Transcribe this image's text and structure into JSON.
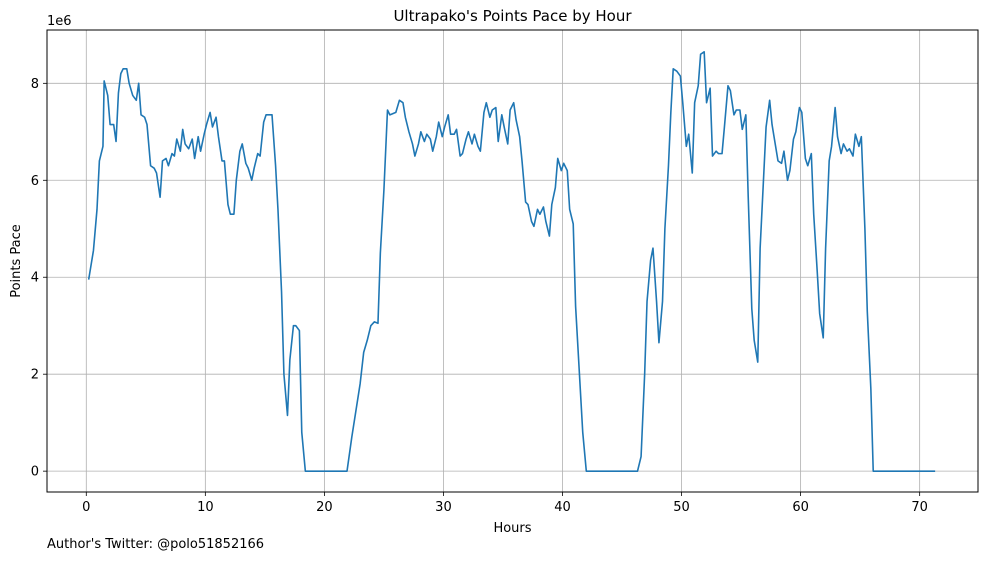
{
  "chart_data": {
    "type": "line",
    "title": "Ultrapako's Points Pace by Hour",
    "xlabel": "Hours",
    "ylabel": "Points Pace",
    "y_scale_label": "1e6",
    "xlim": [
      -3.3,
      74.9
    ],
    "ylim": [
      -0.43,
      9.1
    ],
    "x_ticks": [
      0,
      10,
      20,
      30,
      40,
      50,
      60,
      70
    ],
    "y_ticks": [
      0,
      2,
      4,
      6,
      8
    ],
    "grid": true,
    "legend": "none",
    "colors": {
      "line": "#1f77b4",
      "grid": "#b0b0b0",
      "axes": "#000000"
    },
    "series": [
      {
        "points": [
          [
            0.2,
            3.95
          ],
          [
            0.6,
            4.55
          ],
          [
            0.9,
            5.4
          ],
          [
            1.1,
            6.4
          ],
          [
            1.4,
            6.7
          ],
          [
            1.5,
            8.05
          ],
          [
            1.8,
            7.75
          ],
          [
            2.0,
            7.15
          ],
          [
            2.3,
            7.15
          ],
          [
            2.5,
            6.8
          ],
          [
            2.7,
            7.8
          ],
          [
            2.9,
            8.2
          ],
          [
            3.1,
            8.3
          ],
          [
            3.4,
            8.3
          ],
          [
            3.6,
            8.0
          ],
          [
            3.9,
            7.75
          ],
          [
            4.2,
            7.65
          ],
          [
            4.4,
            8.0
          ],
          [
            4.6,
            7.35
          ],
          [
            4.9,
            7.3
          ],
          [
            5.1,
            7.15
          ],
          [
            5.4,
            6.3
          ],
          [
            5.7,
            6.25
          ],
          [
            5.9,
            6.15
          ],
          [
            6.2,
            5.65
          ],
          [
            6.4,
            6.4
          ],
          [
            6.7,
            6.45
          ],
          [
            6.9,
            6.3
          ],
          [
            7.2,
            6.55
          ],
          [
            7.4,
            6.5
          ],
          [
            7.6,
            6.85
          ],
          [
            7.9,
            6.6
          ],
          [
            8.1,
            7.05
          ],
          [
            8.3,
            6.75
          ],
          [
            8.6,
            6.65
          ],
          [
            8.9,
            6.85
          ],
          [
            9.1,
            6.45
          ],
          [
            9.4,
            6.9
          ],
          [
            9.6,
            6.6
          ],
          [
            9.9,
            6.95
          ],
          [
            10.1,
            7.15
          ],
          [
            10.4,
            7.4
          ],
          [
            10.6,
            7.1
          ],
          [
            10.9,
            7.3
          ],
          [
            11.1,
            6.9
          ],
          [
            11.4,
            6.4
          ],
          [
            11.6,
            6.4
          ],
          [
            11.9,
            5.5
          ],
          [
            12.1,
            5.3
          ],
          [
            12.4,
            5.3
          ],
          [
            12.6,
            6.0
          ],
          [
            12.9,
            6.6
          ],
          [
            13.1,
            6.75
          ],
          [
            13.4,
            6.35
          ],
          [
            13.6,
            6.25
          ],
          [
            13.9,
            6.0
          ],
          [
            14.1,
            6.25
          ],
          [
            14.4,
            6.55
          ],
          [
            14.6,
            6.5
          ],
          [
            14.9,
            7.2
          ],
          [
            15.1,
            7.35
          ],
          [
            15.4,
            7.35
          ],
          [
            15.6,
            7.35
          ],
          [
            15.9,
            6.3
          ],
          [
            16.1,
            5.4
          ],
          [
            16.4,
            3.7
          ],
          [
            16.6,
            2.0
          ],
          [
            16.9,
            1.15
          ],
          [
            17.1,
            2.3
          ],
          [
            17.4,
            3.0
          ],
          [
            17.6,
            3.0
          ],
          [
            17.9,
            2.9
          ],
          [
            18.1,
            0.8
          ],
          [
            18.4,
            0.0
          ],
          [
            19.0,
            0.0
          ],
          [
            20.0,
            0.0
          ],
          [
            21.0,
            0.0
          ],
          [
            21.9,
            0.0
          ],
          [
            22.3,
            0.7
          ],
          [
            23.0,
            1.8
          ],
          [
            23.3,
            2.45
          ],
          [
            23.6,
            2.7
          ],
          [
            23.9,
            3.0
          ],
          [
            24.2,
            3.08
          ],
          [
            24.5,
            3.05
          ],
          [
            24.7,
            4.5
          ],
          [
            25.0,
            5.8
          ],
          [
            25.3,
            7.45
          ],
          [
            25.5,
            7.35
          ],
          [
            25.8,
            7.38
          ],
          [
            26.0,
            7.4
          ],
          [
            26.3,
            7.65
          ],
          [
            26.6,
            7.6
          ],
          [
            26.8,
            7.3
          ],
          [
            27.1,
            7.0
          ],
          [
            27.4,
            6.75
          ],
          [
            27.6,
            6.5
          ],
          [
            27.9,
            6.75
          ],
          [
            28.1,
            7.0
          ],
          [
            28.4,
            6.8
          ],
          [
            28.6,
            6.95
          ],
          [
            28.9,
            6.85
          ],
          [
            29.1,
            6.6
          ],
          [
            29.4,
            6.9
          ],
          [
            29.6,
            7.2
          ],
          [
            29.9,
            6.9
          ],
          [
            30.1,
            7.1
          ],
          [
            30.4,
            7.35
          ],
          [
            30.6,
            6.95
          ],
          [
            30.9,
            6.95
          ],
          [
            31.1,
            7.05
          ],
          [
            31.4,
            6.5
          ],
          [
            31.6,
            6.55
          ],
          [
            31.9,
            6.85
          ],
          [
            32.1,
            7.0
          ],
          [
            32.4,
            6.75
          ],
          [
            32.6,
            6.95
          ],
          [
            32.9,
            6.7
          ],
          [
            33.1,
            6.6
          ],
          [
            33.4,
            7.4
          ],
          [
            33.6,
            7.6
          ],
          [
            33.9,
            7.3
          ],
          [
            34.1,
            7.45
          ],
          [
            34.4,
            7.5
          ],
          [
            34.6,
            6.8
          ],
          [
            34.9,
            7.35
          ],
          [
            35.1,
            7.1
          ],
          [
            35.4,
            6.75
          ],
          [
            35.6,
            7.45
          ],
          [
            35.9,
            7.6
          ],
          [
            36.1,
            7.25
          ],
          [
            36.4,
            6.9
          ],
          [
            36.6,
            6.4
          ],
          [
            36.9,
            5.55
          ],
          [
            37.1,
            5.5
          ],
          [
            37.4,
            5.15
          ],
          [
            37.6,
            5.05
          ],
          [
            37.9,
            5.4
          ],
          [
            38.1,
            5.3
          ],
          [
            38.4,
            5.45
          ],
          [
            38.6,
            5.15
          ],
          [
            38.9,
            4.85
          ],
          [
            39.1,
            5.5
          ],
          [
            39.4,
            5.85
          ],
          [
            39.6,
            6.45
          ],
          [
            39.9,
            6.2
          ],
          [
            40.1,
            6.35
          ],
          [
            40.4,
            6.2
          ],
          [
            40.6,
            5.4
          ],
          [
            40.9,
            5.1
          ],
          [
            41.1,
            3.4
          ],
          [
            41.4,
            2.1
          ],
          [
            41.7,
            0.8
          ],
          [
            42.0,
            0.0
          ],
          [
            43.0,
            0.0
          ],
          [
            44.0,
            0.0
          ],
          [
            45.0,
            0.0
          ],
          [
            46.0,
            0.0
          ],
          [
            46.3,
            0.0
          ],
          [
            46.6,
            0.3
          ],
          [
            46.9,
            2.0
          ],
          [
            47.1,
            3.5
          ],
          [
            47.4,
            4.35
          ],
          [
            47.6,
            4.6
          ],
          [
            47.9,
            3.5
          ],
          [
            48.1,
            2.65
          ],
          [
            48.4,
            3.5
          ],
          [
            48.6,
            5.0
          ],
          [
            48.9,
            6.3
          ],
          [
            49.1,
            7.4
          ],
          [
            49.3,
            8.3
          ],
          [
            49.6,
            8.25
          ],
          [
            49.9,
            8.15
          ],
          [
            50.1,
            7.6
          ],
          [
            50.4,
            6.7
          ],
          [
            50.6,
            6.95
          ],
          [
            50.9,
            6.15
          ],
          [
            51.1,
            7.6
          ],
          [
            51.4,
            7.95
          ],
          [
            51.6,
            8.6
          ],
          [
            51.9,
            8.65
          ],
          [
            52.1,
            7.6
          ],
          [
            52.4,
            7.9
          ],
          [
            52.6,
            6.5
          ],
          [
            52.9,
            6.6
          ],
          [
            53.1,
            6.55
          ],
          [
            53.4,
            6.55
          ],
          [
            53.6,
            7.1
          ],
          [
            53.9,
            7.95
          ],
          [
            54.1,
            7.85
          ],
          [
            54.4,
            7.35
          ],
          [
            54.6,
            7.45
          ],
          [
            54.9,
            7.45
          ],
          [
            55.1,
            7.05
          ],
          [
            55.4,
            7.35
          ],
          [
            55.6,
            5.65
          ],
          [
            55.9,
            3.35
          ],
          [
            56.1,
            2.7
          ],
          [
            56.4,
            2.25
          ],
          [
            56.6,
            4.6
          ],
          [
            56.9,
            6.1
          ],
          [
            57.1,
            7.1
          ],
          [
            57.4,
            7.65
          ],
          [
            57.6,
            7.15
          ],
          [
            57.9,
            6.7
          ],
          [
            58.1,
            6.4
          ],
          [
            58.4,
            6.35
          ],
          [
            58.6,
            6.6
          ],
          [
            58.9,
            6.0
          ],
          [
            59.1,
            6.2
          ],
          [
            59.4,
            6.85
          ],
          [
            59.6,
            7.0
          ],
          [
            59.9,
            7.5
          ],
          [
            60.1,
            7.4
          ],
          [
            60.4,
            6.45
          ],
          [
            60.6,
            6.3
          ],
          [
            60.9,
            6.55
          ],
          [
            61.1,
            5.3
          ],
          [
            61.4,
            4.1
          ],
          [
            61.6,
            3.25
          ],
          [
            61.9,
            2.75
          ],
          [
            62.1,
            4.6
          ],
          [
            62.4,
            6.4
          ],
          [
            62.6,
            6.7
          ],
          [
            62.9,
            7.5
          ],
          [
            63.1,
            6.9
          ],
          [
            63.4,
            6.55
          ],
          [
            63.6,
            6.75
          ],
          [
            63.9,
            6.6
          ],
          [
            64.1,
            6.65
          ],
          [
            64.4,
            6.5
          ],
          [
            64.6,
            6.95
          ],
          [
            64.9,
            6.7
          ],
          [
            65.1,
            6.9
          ],
          [
            65.4,
            5.0
          ],
          [
            65.6,
            3.3
          ],
          [
            65.9,
            1.7
          ],
          [
            66.1,
            0.0
          ],
          [
            67.0,
            0.0
          ],
          [
            68.0,
            0.0
          ],
          [
            69.0,
            0.0
          ],
          [
            70.0,
            0.0
          ],
          [
            71.0,
            0.0
          ],
          [
            71.3,
            0.0
          ]
        ]
      }
    ]
  },
  "footer": {
    "text": "Author's Twitter: @polo51852166"
  }
}
